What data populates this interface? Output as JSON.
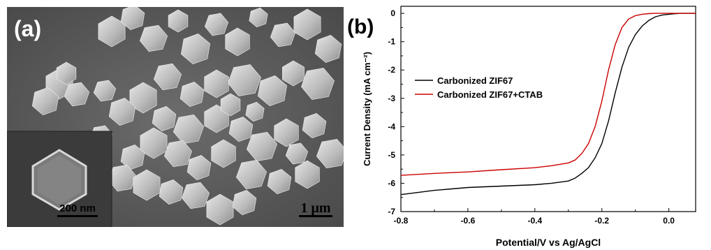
{
  "panel_a": {
    "label": "(a)",
    "scale_bar": "1 μm",
    "inset_scale_bar": "200 nm"
  },
  "chart_data": {
    "panel_label": "(b)",
    "type": "line",
    "xlabel": "Potential/V vs Ag/AgCl",
    "ylabel": "Current Density (mA cm⁻²)",
    "xlim": [
      -0.8,
      0.08
    ],
    "ylim": [
      -7,
      0.25
    ],
    "xticks": [
      -0.8,
      -0.6,
      -0.4,
      -0.2,
      0.0
    ],
    "xtick_labels": [
      "-0.8",
      "-0.6",
      "-0.4",
      "-0.2",
      "0.0"
    ],
    "yticks": [
      0,
      -1,
      -2,
      -3,
      -4,
      -5,
      -6,
      -7
    ],
    "ytick_labels": [
      "0",
      "-1",
      "-2",
      "-3",
      "-4",
      "-5",
      "-6",
      "-7"
    ],
    "legend_position": "middle-left",
    "series": [
      {
        "name": "Carbonized ZIF67",
        "color": "#000000",
        "x": [
          -0.8,
          -0.7,
          -0.6,
          -0.5,
          -0.4,
          -0.35,
          -0.3,
          -0.28,
          -0.26,
          -0.24,
          -0.22,
          -0.2,
          -0.18,
          -0.16,
          -0.14,
          -0.12,
          -0.1,
          -0.08,
          -0.06,
          -0.04,
          -0.02,
          0.0,
          0.02,
          0.04,
          0.06,
          0.08
        ],
        "y": [
          -6.4,
          -6.25,
          -6.15,
          -6.1,
          -6.05,
          -6.0,
          -5.92,
          -5.82,
          -5.65,
          -5.45,
          -5.1,
          -4.6,
          -3.8,
          -2.8,
          -1.9,
          -1.2,
          -0.75,
          -0.45,
          -0.25,
          -0.12,
          -0.06,
          -0.03,
          -0.01,
          0.0,
          0.0,
          0.0
        ]
      },
      {
        "name": "Carbonized ZIF67+CTAB",
        "color": "#cc0000",
        "x": [
          -0.8,
          -0.7,
          -0.6,
          -0.5,
          -0.4,
          -0.35,
          -0.3,
          -0.28,
          -0.26,
          -0.24,
          -0.22,
          -0.2,
          -0.18,
          -0.16,
          -0.14,
          -0.12,
          -0.1,
          -0.08,
          -0.06,
          -0.04,
          -0.02,
          0.0,
          0.02,
          0.04,
          0.06,
          0.08
        ],
        "y": [
          -5.72,
          -5.65,
          -5.6,
          -5.52,
          -5.45,
          -5.38,
          -5.28,
          -5.18,
          -4.95,
          -4.6,
          -4.0,
          -3.1,
          -2.0,
          -1.1,
          -0.5,
          -0.2,
          -0.08,
          -0.03,
          -0.01,
          0.0,
          0.0,
          0.0,
          0.0,
          0.0,
          0.0,
          0.0
        ]
      }
    ]
  }
}
